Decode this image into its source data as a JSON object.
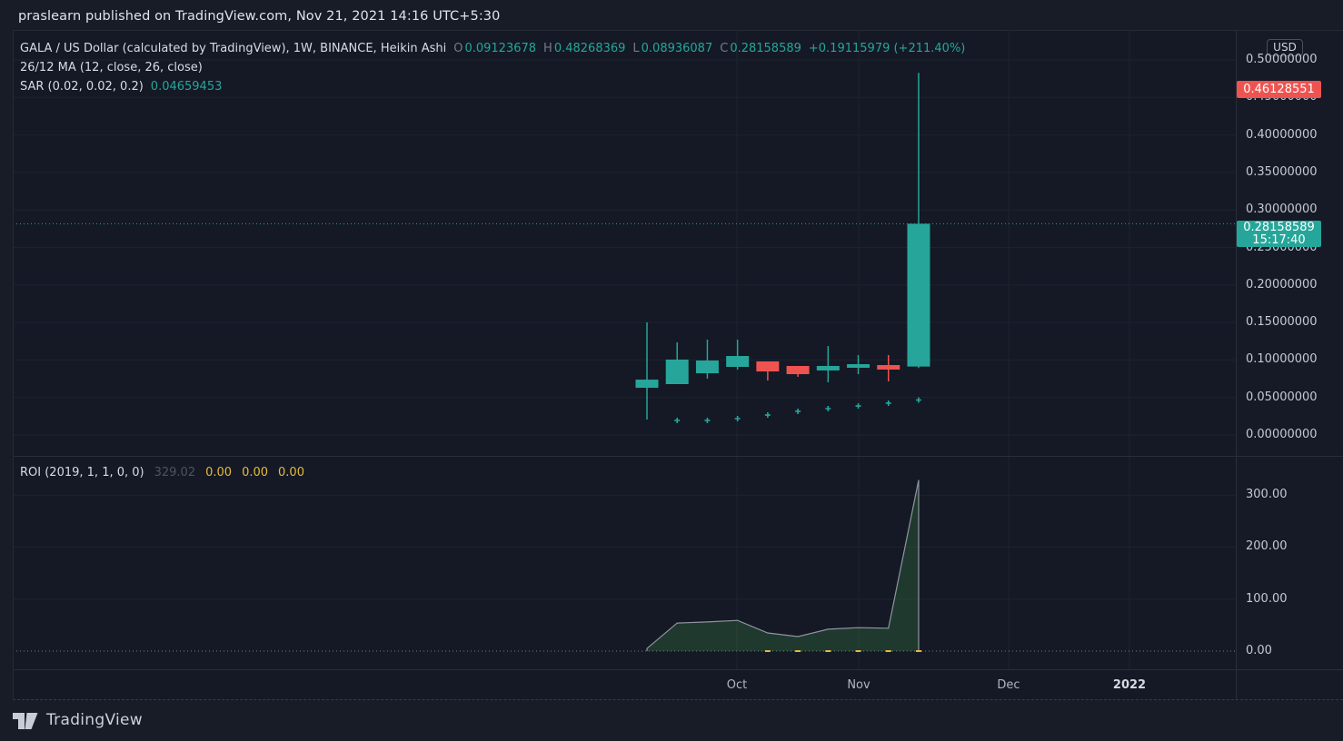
{
  "header": {
    "caption": "praslearn published on TradingView.com, Nov 21, 2021 14:16 UTC+5:30"
  },
  "legend": {
    "title": "GALA / US Dollar (calculated by TradingView), 1W, BINANCE, Heikin Ashi",
    "ohlc": [
      {
        "label": "O",
        "value": "0.09123678"
      },
      {
        "label": "H",
        "value": "0.48268369"
      },
      {
        "label": "L",
        "value": "0.08936087"
      },
      {
        "label": "C",
        "value": "0.28158589"
      }
    ],
    "change": "+0.19115979 (+211.40%)",
    "ma_line": "26/12 MA (12, close, 26, close)",
    "sar_label": "SAR (0.02, 0.02, 0.2)",
    "sar_value": "0.04659453"
  },
  "roi_legend": {
    "label": "ROI (2019, 1, 1, 0, 0)",
    "dim_value": "329.02",
    "values": [
      "0.00",
      "0.00",
      "0.00"
    ]
  },
  "price_axis": {
    "currency": "USD",
    "ticks": [
      "0.50000000",
      "0.45000000",
      "0.40000000",
      "0.35000000",
      "0.30000000",
      "0.25000000",
      "0.20000000",
      "0.15000000",
      "0.10000000",
      "0.05000000",
      "0.00000000"
    ],
    "red_tag": "0.46128551",
    "teal_tag": {
      "price": "0.28158589",
      "countdown": "15:17:40"
    }
  },
  "roi_axis": {
    "ticks": [
      "300.00",
      "200.00",
      "100.00",
      "0.00"
    ]
  },
  "time_axis": {
    "labels": [
      "Oct",
      "Nov",
      "Dec",
      "2022"
    ]
  },
  "logo": {
    "text": "TradingView"
  },
  "colors": {
    "up": "#26a69a",
    "down": "#ef5350",
    "yellow": "#e8b93b",
    "grid": "#1d2230",
    "dotted_zero": "#787b86",
    "roi_fill": "rgba(76,175,80,0.22)",
    "roi_stroke": "#9094a0"
  },
  "chart_data": {
    "type": "candlestick+area",
    "symbol": "GALA/USD",
    "interval": "1W",
    "chart_style": "Heikin Ashi",
    "panes": [
      {
        "name": "price",
        "unit": "USD",
        "ylim": [
          0.0,
          0.5
        ],
        "grid": true,
        "current_price": 0.28158589,
        "candles_ohlc": [
          [
            0.0629,
            0.1501,
            0.0206,
            0.0738
          ],
          [
            0.0678,
            0.1235,
            0.0678,
            0.1005
          ],
          [
            0.0823,
            0.1271,
            0.0751,
            0.0993
          ],
          [
            0.0908,
            0.1271,
            0.0872,
            0.1053
          ],
          [
            0.0981,
            0.0981,
            0.0726,
            0.0847
          ],
          [
            0.092,
            0.092,
            0.0775,
            0.0811
          ],
          [
            0.086,
            0.1186,
            0.0702,
            0.092
          ],
          [
            0.0896,
            0.1065,
            0.0811,
            0.0944
          ],
          [
            0.0932,
            0.1065,
            0.0714,
            0.0872
          ],
          [
            0.09123678,
            0.48268369,
            0.08936087,
            0.28158589
          ]
        ],
        "sar_dots": {
          "start_index": 1,
          "values": [
            0.0194,
            0.0194,
            0.0218,
            0.0266,
            0.0315,
            0.0351,
            0.0387,
            0.0424,
            0.0466
          ]
        }
      },
      {
        "name": "roi",
        "ylim": [
          0,
          350
        ],
        "grid": true,
        "zero_line": 0,
        "area_values": [
          5,
          54,
          56,
          59,
          35,
          28,
          42,
          45,
          44,
          329.02
        ],
        "zero_marker_indices": [
          4,
          5,
          6,
          7,
          8,
          9
        ]
      }
    ],
    "x_labels": [
      "Oct",
      "Nov",
      "Dec",
      "2022"
    ]
  }
}
